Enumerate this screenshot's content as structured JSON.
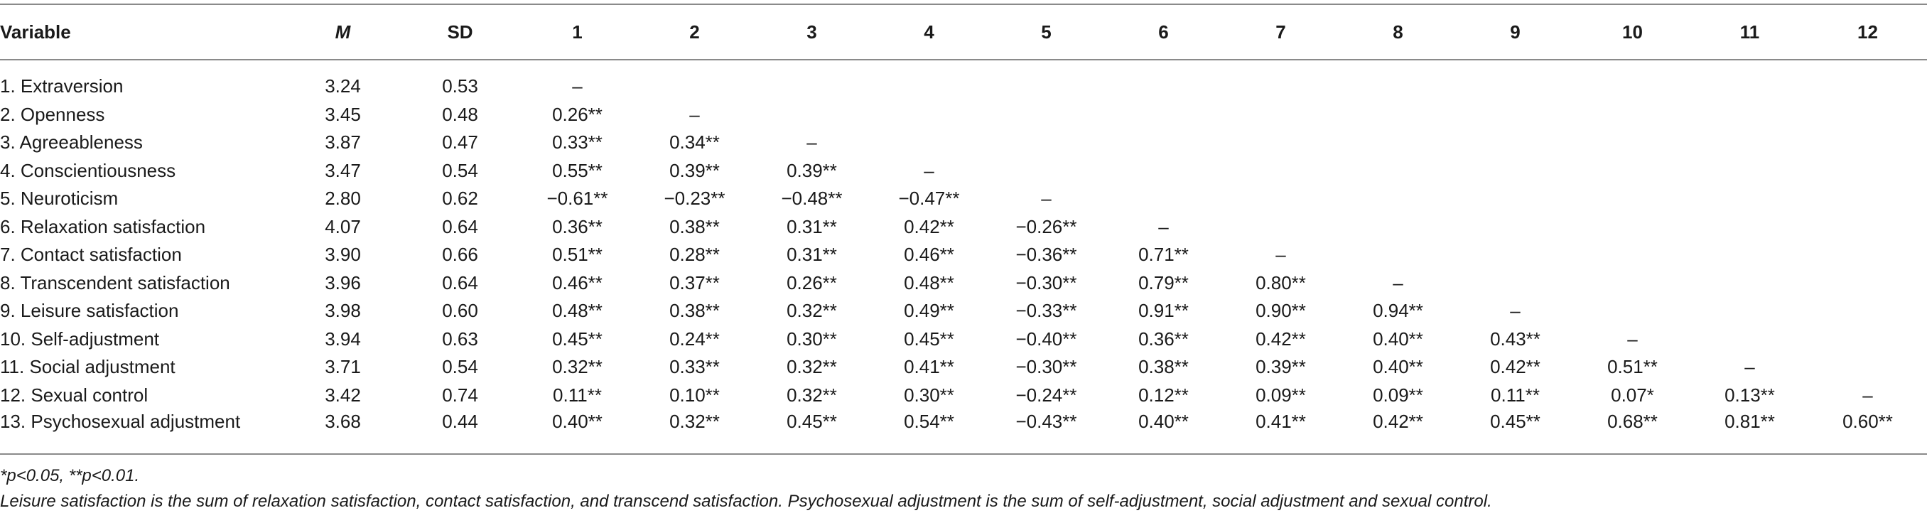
{
  "headers": [
    "Variable",
    "M",
    "SD",
    "1",
    "2",
    "3",
    "4",
    "5",
    "6",
    "7",
    "8",
    "9",
    "10",
    "11",
    "12"
  ],
  "rows": [
    {
      "variable": "1. Extraversion",
      "m": "3.24",
      "sd": "0.53",
      "cells": [
        "–",
        "",
        "",
        "",
        "",
        "",
        "",
        "",
        "",
        "",
        "",
        ""
      ]
    },
    {
      "variable": "2. Openness",
      "m": "3.45",
      "sd": "0.48",
      "cells": [
        "0.26**",
        "–",
        "",
        "",
        "",
        "",
        "",
        "",
        "",
        "",
        "",
        ""
      ]
    },
    {
      "variable": "3. Agreeableness",
      "m": "3.87",
      "sd": "0.47",
      "cells": [
        "0.33**",
        "0.34**",
        "–",
        "",
        "",
        "",
        "",
        "",
        "",
        "",
        "",
        ""
      ]
    },
    {
      "variable": "4. Conscientiousness",
      "m": "3.47",
      "sd": "0.54",
      "cells": [
        "0.55**",
        "0.39**",
        "0.39**",
        "–",
        "",
        "",
        "",
        "",
        "",
        "",
        "",
        ""
      ]
    },
    {
      "variable": "5. Neuroticism",
      "m": "2.80",
      "sd": "0.62",
      "cells": [
        "−0.61**",
        "−0.23**",
        "−0.48**",
        "−0.47**",
        "–",
        "",
        "",
        "",
        "",
        "",
        "",
        ""
      ]
    },
    {
      "variable": "6. Relaxation satisfaction",
      "m": "4.07",
      "sd": "0.64",
      "cells": [
        "0.36**",
        "0.38**",
        "0.31**",
        "0.42**",
        "−0.26**",
        "–",
        "",
        "",
        "",
        "",
        "",
        ""
      ]
    },
    {
      "variable": "7. Contact satisfaction",
      "m": "3.90",
      "sd": "0.66",
      "cells": [
        "0.51**",
        "0.28**",
        "0.31**",
        "0.46**",
        "−0.36**",
        "0.71**",
        "–",
        "",
        "",
        "",
        "",
        ""
      ]
    },
    {
      "variable": "8. Transcendent satisfaction",
      "m": "3.96",
      "sd": "0.64",
      "cells": [
        "0.46**",
        "0.37**",
        "0.26**",
        "0.48**",
        "−0.30**",
        "0.79**",
        "0.80**",
        "–",
        "",
        "",
        "",
        ""
      ]
    },
    {
      "variable": "9. Leisure satisfaction",
      "m": "3.98",
      "sd": "0.60",
      "cells": [
        "0.48**",
        "0.38**",
        "0.32**",
        "0.49**",
        "−0.33**",
        "0.91**",
        "0.90**",
        "0.94**",
        "–",
        "",
        "",
        ""
      ]
    },
    {
      "variable": "10. Self-adjustment",
      "m": "3.94",
      "sd": "0.63",
      "cells": [
        "0.45**",
        "0.24**",
        "0.30**",
        "0.45**",
        "−0.40**",
        "0.36**",
        "0.42**",
        "0.40**",
        "0.43**",
        "–",
        "",
        ""
      ]
    },
    {
      "variable": "11. Social adjustment",
      "m": "3.71",
      "sd": "0.54",
      "cells": [
        "0.32**",
        "0.33**",
        "0.32**",
        "0.41**",
        "−0.30**",
        "0.38**",
        "0.39**",
        "0.40**",
        "0.42**",
        "0.51**",
        "–",
        ""
      ]
    },
    {
      "variable": "12. Sexual control",
      "m": "3.42",
      "sd": "0.74",
      "cells": [
        "0.11**",
        "0.10**",
        "0.32**",
        "0.30**",
        "−0.24**",
        "0.12**",
        "0.09**",
        "0.09**",
        "0.11**",
        "0.07*",
        "0.13**",
        "–"
      ]
    },
    {
      "variable": "13. Psychosexual adjustment",
      "m": "3.68",
      "sd": "0.44",
      "cells": [
        "0.40**",
        "0.32**",
        "0.45**",
        "0.54**",
        "−0.43**",
        "0.40**",
        "0.41**",
        "0.42**",
        "0.45**",
        "0.68**",
        "0.81**",
        "0.60**"
      ]
    }
  ],
  "notes": {
    "significance": "*p<0.05,  **p<0.01.",
    "definition": "Leisure satisfaction is the sum of relaxation satisfaction, contact satisfaction, and transcend satisfaction. Psychosexual adjustment is the sum of self-adjustment, social adjustment and sexual control."
  }
}
